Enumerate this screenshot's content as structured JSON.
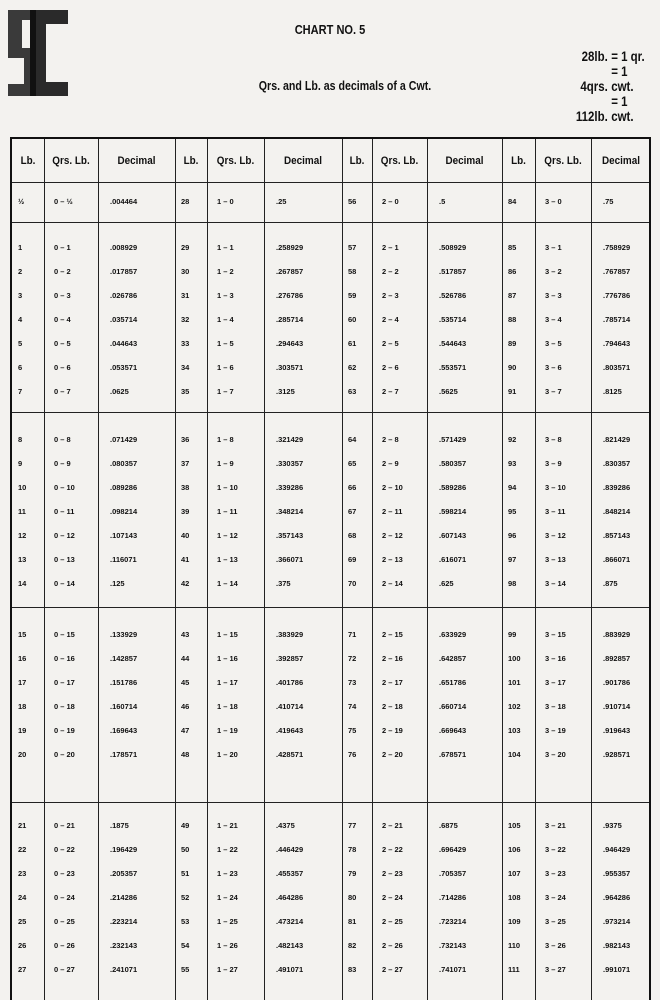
{
  "logo_text": "SC",
  "title": "CHART NO. 5",
  "subtitle": "Qrs. and Lb. as decimals of a Cwt.",
  "conversions": [
    {
      "unit": "28lb.",
      "equals": "= 1 qr."
    },
    {
      "unit": "4qrs.",
      "equals": "= 1 cwt."
    },
    {
      "unit": "112lb.",
      "equals": "= 1 cwt."
    }
  ],
  "headers": [
    "Lb.",
    "Qrs. Lb.",
    "Decimal",
    "Lb.",
    "Qrs. Lb.",
    "Decimal",
    "Lb.",
    "Qrs. Lb.",
    "Decimal",
    "Lb.",
    "Qrs. Lb.",
    "Decimal"
  ],
  "groups": [
    [
      [
        "½",
        "0 – ½",
        ".004464",
        "28",
        "1 – 0",
        ".25",
        "56",
        "2 – 0",
        ".5",
        "84",
        "3 – 0",
        ".75"
      ]
    ],
    [
      [
        "1",
        "0 – 1",
        ".008929",
        "29",
        "1 – 1",
        ".258929",
        "57",
        "2 – 1",
        ".508929",
        "85",
        "3 – 1",
        ".758929"
      ],
      [
        "2",
        "0 – 2",
        ".017857",
        "30",
        "1 – 2",
        ".267857",
        "58",
        "2 – 2",
        ".517857",
        "86",
        "3 – 2",
        ".767857"
      ],
      [
        "3",
        "0 – 3",
        ".026786",
        "31",
        "1 – 3",
        ".276786",
        "59",
        "2 – 3",
        ".526786",
        "87",
        "3 – 3",
        ".776786"
      ],
      [
        "4",
        "0 – 4",
        ".035714",
        "32",
        "1 – 4",
        ".285714",
        "60",
        "2 – 4",
        ".535714",
        "88",
        "3 – 4",
        ".785714"
      ],
      [
        "5",
        "0 – 5",
        ".044643",
        "33",
        "1 – 5",
        ".294643",
        "61",
        "2 – 5",
        ".544643",
        "89",
        "3 – 5",
        ".794643"
      ],
      [
        "6",
        "0 – 6",
        ".053571",
        "34",
        "1 – 6",
        ".303571",
        "62",
        "2 – 6",
        ".553571",
        "90",
        "3 – 6",
        ".803571"
      ],
      [
        "7",
        "0 – 7",
        ".0625",
        "35",
        "1 – 7",
        ".3125",
        "63",
        "2 – 7",
        ".5625",
        "91",
        "3 – 7",
        ".8125"
      ]
    ],
    [
      [
        "8",
        "0 – 8",
        ".071429",
        "36",
        "1 – 8",
        ".321429",
        "64",
        "2 – 8",
        ".571429",
        "92",
        "3 – 8",
        ".821429"
      ],
      [
        "9",
        "0 – 9",
        ".080357",
        "37",
        "1 – 9",
        ".330357",
        "65",
        "2 – 9",
        ".580357",
        "93",
        "3 – 9",
        ".830357"
      ],
      [
        "10",
        "0 – 10",
        ".089286",
        "38",
        "1 – 10",
        ".339286",
        "66",
        "2 – 10",
        ".589286",
        "94",
        "3 – 10",
        ".839286"
      ],
      [
        "11",
        "0 – 11",
        ".098214",
        "39",
        "1 – 11",
        ".348214",
        "67",
        "2 – 11",
        ".598214",
        "95",
        "3 – 11",
        ".848214"
      ],
      [
        "12",
        "0 – 12",
        ".107143",
        "40",
        "1 – 12",
        ".357143",
        "68",
        "2 – 12",
        ".607143",
        "96",
        "3 – 12",
        ".857143"
      ],
      [
        "13",
        "0 – 13",
        ".116071",
        "41",
        "1 – 13",
        ".366071",
        "69",
        "2 – 13",
        ".616071",
        "97",
        "3 – 13",
        ".866071"
      ],
      [
        "14",
        "0 – 14",
        ".125",
        "42",
        "1 – 14",
        ".375",
        "70",
        "2 – 14",
        ".625",
        "98",
        "3 – 14",
        ".875"
      ]
    ],
    [
      [
        "15",
        "0 – 15",
        ".133929",
        "43",
        "1 – 15",
        ".383929",
        "71",
        "2 – 15",
        ".633929",
        "99",
        "3 – 15",
        ".883929"
      ],
      [
        "16",
        "0 – 16",
        ".142857",
        "44",
        "1 – 16",
        ".392857",
        "72",
        "2 – 16",
        ".642857",
        "100",
        "3 – 16",
        ".892857"
      ],
      [
        "17",
        "0 – 17",
        ".151786",
        "45",
        "1 – 17",
        ".401786",
        "73",
        "2 – 17",
        ".651786",
        "101",
        "3 – 17",
        ".901786"
      ],
      [
        "18",
        "0 – 18",
        ".160714",
        "46",
        "1 – 18",
        ".410714",
        "74",
        "2 – 18",
        ".660714",
        "102",
        "3 – 18",
        ".910714"
      ],
      [
        "19",
        "0 – 19",
        ".169643",
        "47",
        "1 – 19",
        ".419643",
        "75",
        "2 – 19",
        ".669643",
        "103",
        "3 – 19",
        ".919643"
      ],
      [
        "20",
        "0 – 20",
        ".178571",
        "48",
        "1 – 20",
        ".428571",
        "76",
        "2 – 20",
        ".678571",
        "104",
        "3 – 20",
        ".928571"
      ]
    ],
    [
      [
        "21",
        "0 – 21",
        ".1875",
        "49",
        "1 – 21",
        ".4375",
        "77",
        "2 – 21",
        ".6875",
        "105",
        "3 – 21",
        ".9375"
      ],
      [
        "22",
        "0 – 22",
        ".196429",
        "50",
        "1 – 22",
        ".446429",
        "78",
        "2 – 22",
        ".696429",
        "106",
        "3 – 22",
        ".946429"
      ],
      [
        "23",
        "0 – 23",
        ".205357",
        "51",
        "1 – 23",
        ".455357",
        "79",
        "2 – 23",
        ".705357",
        "107",
        "3 – 23",
        ".955357"
      ],
      [
        "24",
        "0 – 24",
        ".214286",
        "52",
        "1 – 24",
        ".464286",
        "80",
        "2 – 24",
        ".714286",
        "108",
        "3 – 24",
        ".964286"
      ],
      [
        "25",
        "0 – 25",
        ".223214",
        "53",
        "1 – 25",
        ".473214",
        "81",
        "2 – 25",
        ".723214",
        "109",
        "3 – 25",
        ".973214"
      ],
      [
        "26",
        "0 – 26",
        ".232143",
        "54",
        "1 – 26",
        ".482143",
        "82",
        "2 – 26",
        ".732143",
        "110",
        "3 – 26",
        ".982143"
      ],
      [
        "27",
        "0 – 27",
        ".241071",
        "55",
        "1 – 27",
        ".491071",
        "83",
        "2 – 27",
        ".741071",
        "111",
        "3 – 27",
        ".991071"
      ]
    ]
  ]
}
